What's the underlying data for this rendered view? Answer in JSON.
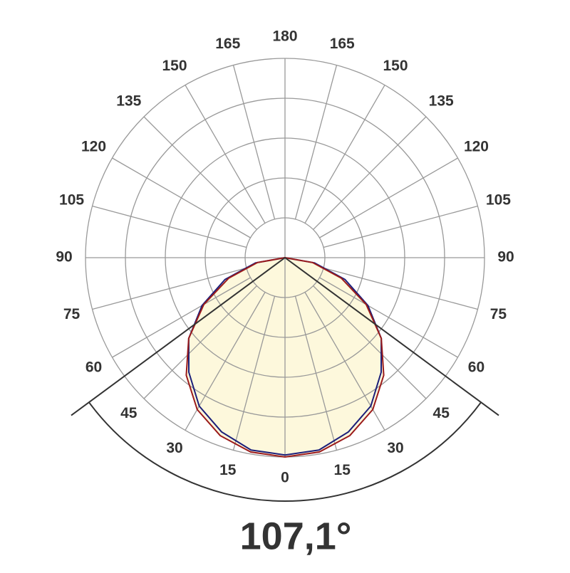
{
  "chart_data": {
    "type": "polar",
    "angle_ticks": [
      0,
      15,
      30,
      45,
      60,
      75,
      90,
      105,
      120,
      135,
      150,
      165,
      180
    ],
    "rlim": [
      0,
      1
    ],
    "rticks": [
      0.2,
      0.4,
      0.6,
      0.8,
      1
    ],
    "angles": [
      -90,
      -80,
      -70,
      -60,
      -50,
      -40,
      -30,
      -20,
      -10,
      0,
      10,
      20,
      30,
      40,
      50,
      60,
      70,
      80,
      90
    ],
    "series": [
      {
        "color": "#1b1f7a",
        "values": [
          0,
          0.15,
          0.32,
          0.48,
          0.63,
          0.75,
          0.86,
          0.93,
          0.98,
          0.99,
          0.98,
          0.93,
          0.86,
          0.75,
          0.63,
          0.48,
          0.32,
          0.15,
          0
        ]
      },
      {
        "color": "#9b1b1b",
        "values": [
          0,
          0.14,
          0.3,
          0.47,
          0.63,
          0.77,
          0.88,
          0.95,
          0.99,
          1.0,
          0.99,
          0.95,
          0.88,
          0.77,
          0.63,
          0.47,
          0.3,
          0.14,
          0
        ]
      }
    ],
    "fill_color": "#fdf8dc",
    "beam_angle": 107.1,
    "beam_angle_label": "107,1°"
  }
}
